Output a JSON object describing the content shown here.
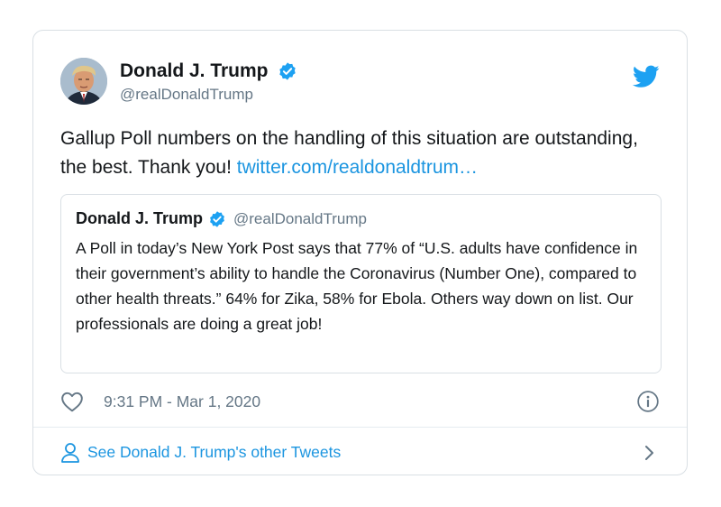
{
  "tweet": {
    "author": {
      "display_name": "Donald J. Trump",
      "handle": "@realDonaldTrump",
      "verified": true
    },
    "text": "Gallup Poll numbers on the handling of this situation are outstanding, the best. Thank you! ",
    "link_text": "twitter.com/realdonaldtrum…",
    "timestamp": "9:31 PM - Mar 1, 2020",
    "icons": {
      "brand": "twitter-bird-icon",
      "like": "heart-icon",
      "info": "info-icon",
      "verified": "verified-badge-icon"
    }
  },
  "quoted_tweet": {
    "display_name": "Donald J. Trump",
    "handle": "@realDonaldTrump",
    "text": "A Poll in today’s New York Post says that 77% of “U.S. adults have confidence in their government’s ability to handle the Coronavirus (Number One), compared to other health threats.” 64% for Zika, 58% for Ebola. Others way down on list. Our professionals are doing a great job!"
  },
  "footer": {
    "label": "See Donald J. Trump's other Tweets",
    "icons": {
      "person": "person-icon",
      "chevron": "chevron-right-icon"
    }
  },
  "colors": {
    "accent": "#1b95e0",
    "verified": "#1da1f2",
    "text": "#14171a",
    "muted": "#657786",
    "border": "#d9dfe4"
  }
}
